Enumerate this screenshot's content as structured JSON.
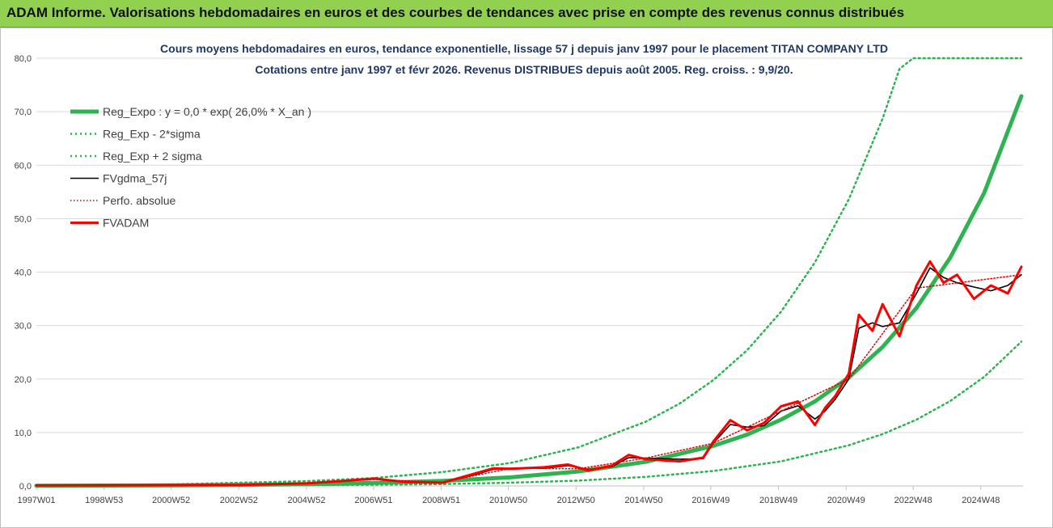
{
  "banner": {
    "title": "ADAM Informe. Valorisations hebdomadaires en euros et des courbes de tendances avec prise en compte des revenus connus distribués"
  },
  "chart_data": {
    "type": "line",
    "title": "Cours moyens hebdomadaires en euros, tendance exponentielle, lissage 57 j depuis janv 1997 pour le placement TITAN COMPANY LTD",
    "subtitle": "Cotations entre janv 1997 et févr 2026. Revenus DISTRIBUES depuis août 2005. Reg. croiss. : 9,9/20.",
    "xlabel": "",
    "ylabel": "",
    "ylim": [
      0,
      80
    ],
    "yticks": [
      "0,0",
      "10,0",
      "20,0",
      "30,0",
      "40,0",
      "50,0",
      "60,0",
      "70,0",
      "80,0"
    ],
    "xticks": [
      "1997W01",
      "1998W53",
      "2000W52",
      "2002W52",
      "2004W52",
      "2006W51",
      "2008W51",
      "2010W50",
      "2012W50",
      "2014W50",
      "2016W49",
      "2018W49",
      "2020W49",
      "2022W48",
      "2024W48"
    ],
    "xlim": [
      1997.0,
      2026.15
    ],
    "grid": true,
    "legend_position": "top-left",
    "colors": {
      "reg": "#2eb350",
      "band": "#2eb350",
      "gdma": "#000000",
      "perfo": "#e00000",
      "fvadam": "#ff0000"
    },
    "series": [
      {
        "name": "Reg_Expo : y = 0,0 * exp( 26,0% *  X_an )",
        "style": "solid-green-thick",
        "x": [
          1997,
          1999,
          2001,
          2003,
          2005,
          2007,
          2009,
          2011,
          2013,
          2015,
          2017,
          2018,
          2019,
          2020,
          2021,
          2022,
          2023,
          2024,
          2025,
          2026.1
        ],
        "values": [
          0.04,
          0.07,
          0.12,
          0.2,
          0.34,
          0.57,
          0.95,
          1.6,
          2.7,
          4.5,
          7.5,
          9.6,
          12.4,
          15.8,
          20.3,
          26,
          33.3,
          42.7,
          54.8,
          72.9
        ]
      },
      {
        "name": "Reg_Exp - 2*sigma",
        "style": "dotted-green",
        "x": [
          1997,
          2001,
          2005,
          2009,
          2011,
          2013,
          2015,
          2017,
          2019,
          2021,
          2022,
          2023,
          2024,
          2025,
          2026.1
        ],
        "values": [
          0.01,
          0.04,
          0.13,
          0.35,
          0.6,
          1.0,
          1.7,
          2.8,
          4.6,
          7.6,
          9.7,
          12.4,
          15.9,
          20.4,
          27
        ]
      },
      {
        "name": "Reg_Exp + 2 sigma",
        "style": "dotted-green",
        "x": [
          1997,
          2001,
          2005,
          2007,
          2009,
          2011,
          2013,
          2015,
          2016,
          2017,
          2018,
          2019,
          2020,
          2021,
          2022,
          2022.5,
          2022.9,
          2024,
          2025,
          2026.1
        ],
        "values": [
          0.1,
          0.3,
          0.9,
          1.5,
          2.6,
          4.3,
          7.2,
          12,
          15.4,
          19.8,
          25.4,
          32.6,
          41.8,
          53.6,
          68.7,
          78,
          80,
          80,
          80,
          80
        ]
      },
      {
        "name": "FVgdma_57j",
        "style": "solid-black",
        "x": [
          1997,
          2003,
          2005,
          2006,
          2007,
          2007.5,
          2008,
          2009,
          2010,
          2010.5,
          2011,
          2012,
          2012.7,
          2013.3,
          2014,
          2014.5,
          2015,
          2016,
          2016.7,
          2017,
          2017.5,
          2018,
          2018.5,
          2019,
          2019.5,
          2020,
          2020.3,
          2020.6,
          2021,
          2021.3,
          2021.7,
          2022,
          2022.5,
          2023,
          2023.4,
          2023.8,
          2024.2,
          2024.7,
          2025.2,
          2025.7,
          2026.1
        ],
        "values": [
          0.1,
          0.2,
          0.5,
          0.9,
          1.3,
          1.1,
          0.7,
          0.6,
          2.2,
          3.1,
          3.3,
          3.3,
          3.8,
          3.1,
          3.6,
          5.3,
          5.2,
          5.0,
          5.1,
          8.0,
          11.5,
          11.0,
          11.3,
          14.0,
          15.0,
          12.5,
          14.0,
          16.2,
          20.0,
          29.5,
          30.5,
          29.8,
          30.5,
          36.0,
          40.8,
          39.0,
          38.0,
          37.2,
          36.5,
          37.5,
          39.5
        ]
      },
      {
        "name": "Perfo. absolue",
        "style": "dotted-red",
        "x": [
          1997,
          2003,
          2005,
          2007,
          2009,
          2011,
          2013,
          2015,
          2017,
          2019,
          2021,
          2023,
          2026.1
        ],
        "values": [
          0.1,
          0.2,
          0.5,
          1.2,
          0.7,
          3.3,
          3.2,
          5.2,
          8.0,
          14.0,
          20.0,
          37.0,
          39.5
        ]
      },
      {
        "name": "FVADAM",
        "style": "solid-red-thick",
        "x": [
          1997,
          2003,
          2005,
          2006,
          2007,
          2007.5,
          2008,
          2009,
          2010,
          2010.5,
          2011,
          2012,
          2012.7,
          2013.3,
          2014,
          2014.5,
          2015,
          2016,
          2016.7,
          2017,
          2017.5,
          2018,
          2018.5,
          2019,
          2019.5,
          2020,
          2020.3,
          2020.6,
          2021,
          2021.3,
          2021.7,
          2022,
          2022.5,
          2023,
          2023.4,
          2023.8,
          2024.2,
          2024.7,
          2025.2,
          2025.7,
          2026.1
        ],
        "values": [
          0.1,
          0.2,
          0.5,
          0.9,
          1.4,
          1.0,
          0.7,
          0.6,
          2.4,
          3.3,
          3.2,
          3.5,
          4.0,
          2.9,
          3.8,
          5.8,
          5.0,
          4.6,
          5.3,
          8.3,
          12.3,
          10.4,
          11.8,
          14.9,
          15.8,
          11.4,
          14.6,
          16.8,
          21.0,
          32.0,
          29.0,
          34.0,
          28.0,
          37.5,
          42.0,
          38.0,
          39.5,
          35.0,
          37.5,
          36.0,
          41.0
        ]
      }
    ]
  }
}
